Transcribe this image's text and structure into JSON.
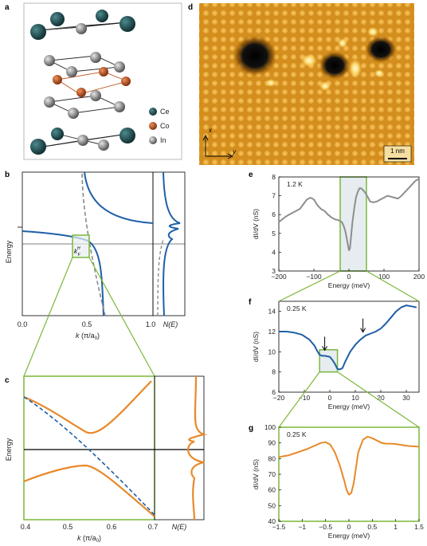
{
  "panels": {
    "a": {
      "label": "a",
      "legend": [
        {
          "name": "Ce",
          "color": "#1f4a4e"
        },
        {
          "name": "Co",
          "color": "#c0521e"
        },
        {
          "name": "In",
          "color": "#8a8a8a"
        }
      ]
    },
    "b": {
      "label": "b",
      "ylabel": "Energy",
      "kf": "k",
      "kf_sup": "H",
      "kf_sub": "F",
      "xticks": [
        "0.0",
        "0.5",
        "1.0"
      ],
      "xlabel_k": "k",
      "xlabel_unit": "(π/a",
      "xlabel_sub": "0",
      "xlabel_close": ")",
      "nlabel": "N(E)"
    },
    "c": {
      "label": "c",
      "ylabel": "Energy",
      "xticks": [
        "0.4",
        "0.5",
        "0.6",
        "0.7"
      ],
      "xlabel_k": "k",
      "xlabel_unit": "(π/a",
      "xlabel_sub": "0",
      "xlabel_close": ")",
      "nlabel": "N(E)"
    },
    "d": {
      "label": "d",
      "axis_x": "x",
      "axis_y": "y",
      "scalebar": "1 nm"
    },
    "e": {
      "label": "e",
      "temp": "1.2 K",
      "ylabel": "dI/dV (nS)",
      "xlabel": "Energy (meV)"
    },
    "f": {
      "label": "f",
      "temp": "0.25 K",
      "ylabel": "dI/dV (nS)",
      "xlabel": "Energy (meV)"
    },
    "g": {
      "label": "g",
      "temp": "0.25 K",
      "ylabel": "dI/dV (nS)",
      "xlabel": "Energy (meV)"
    }
  },
  "colors": {
    "blue": "#1f5fa6",
    "orange": "#e8892a",
    "green": "#7ab83a",
    "gray": "#8e8e8e",
    "dash": "#8a8a8a"
  },
  "chart_data": [
    {
      "type": "line",
      "panel": "e",
      "xlim": [
        -200,
        200
      ],
      "ylim": [
        3,
        8
      ],
      "xticks": [
        -200,
        -100,
        0,
        100,
        200
      ],
      "yticks": [
        3,
        4,
        5,
        6,
        7,
        8
      ],
      "series": [
        {
          "x": [
            -200,
            -180,
            -160,
            -140,
            -120,
            -110,
            -100,
            -90,
            -80,
            -70,
            -60,
            -50,
            -40,
            -30,
            -20,
            -15,
            -10,
            -5,
            0,
            3,
            6,
            10,
            15,
            20,
            25,
            30,
            35,
            40,
            45,
            50,
            55,
            60,
            70,
            80,
            90,
            100,
            110,
            120,
            130,
            140,
            150,
            160,
            170,
            180,
            190,
            200
          ],
          "values": [
            5.6,
            5.9,
            6.1,
            6.3,
            6.8,
            6.9,
            6.8,
            6.5,
            6.3,
            6.2,
            6.0,
            5.85,
            5.75,
            5.7,
            5.6,
            5.4,
            5.1,
            4.6,
            4.1,
            4.2,
            4.8,
            5.6,
            6.3,
            6.9,
            7.2,
            7.4,
            7.4,
            7.3,
            7.2,
            7.05,
            6.9,
            6.7,
            6.65,
            6.7,
            6.8,
            6.9,
            7.0,
            6.95,
            6.9,
            6.85,
            7.0,
            7.2,
            7.4,
            7.6,
            7.8,
            7.9
          ]
        }
      ]
    },
    {
      "type": "line",
      "panel": "f",
      "xlim": [
        -20,
        35
      ],
      "ylim": [
        6,
        15
      ],
      "xticks": [
        -20,
        -10,
        0,
        10,
        20,
        30
      ],
      "yticks": [
        6,
        8,
        10,
        12,
        14
      ],
      "series": [
        {
          "x": [
            -20,
            -17,
            -14,
            -11,
            -8,
            -6,
            -5,
            -4,
            -3,
            -2,
            -1,
            0,
            1,
            2,
            3,
            4,
            5,
            6,
            8,
            10,
            12,
            14,
            16,
            18,
            20,
            22,
            24,
            26,
            28,
            30,
            32,
            34
          ],
          "values": [
            12.0,
            12.0,
            11.9,
            11.7,
            11.2,
            10.6,
            10.1,
            9.7,
            9.6,
            9.6,
            9.55,
            9.5,
            9.2,
            8.8,
            8.3,
            8.25,
            8.4,
            9.0,
            10.0,
            10.7,
            11.2,
            11.6,
            11.8,
            12.0,
            12.3,
            12.8,
            13.4,
            14.0,
            14.4,
            14.6,
            14.5,
            14.4
          ]
        }
      ],
      "arrows_x": [
        -2,
        13
      ]
    },
    {
      "type": "line",
      "panel": "g",
      "xlim": [
        -1.5,
        1.5
      ],
      "ylim": [
        40,
        100
      ],
      "xticks": [
        -1.5,
        -1.0,
        -0.5,
        0.0,
        0.5,
        1.0,
        1.5
      ],
      "yticks": [
        40,
        50,
        60,
        70,
        80,
        90,
        100
      ],
      "series": [
        {
          "x": [
            -1.5,
            -1.3,
            -1.1,
            -0.9,
            -0.75,
            -0.6,
            -0.5,
            -0.4,
            -0.3,
            -0.2,
            -0.1,
            -0.05,
            0.0,
            0.05,
            0.1,
            0.15,
            0.2,
            0.3,
            0.4,
            0.5,
            0.6,
            0.7,
            0.8,
            0.9,
            1.0,
            1.1,
            1.2,
            1.3,
            1.4,
            1.5
          ],
          "values": [
            81,
            82,
            84,
            86,
            88,
            90,
            90.5,
            89,
            84,
            76,
            66,
            60,
            57,
            58,
            64,
            74,
            84,
            92,
            94,
            93,
            91.5,
            90,
            89.5,
            89.5,
            89.3,
            88.8,
            88.3,
            88,
            87.8,
            87.6
          ]
        }
      ]
    }
  ]
}
